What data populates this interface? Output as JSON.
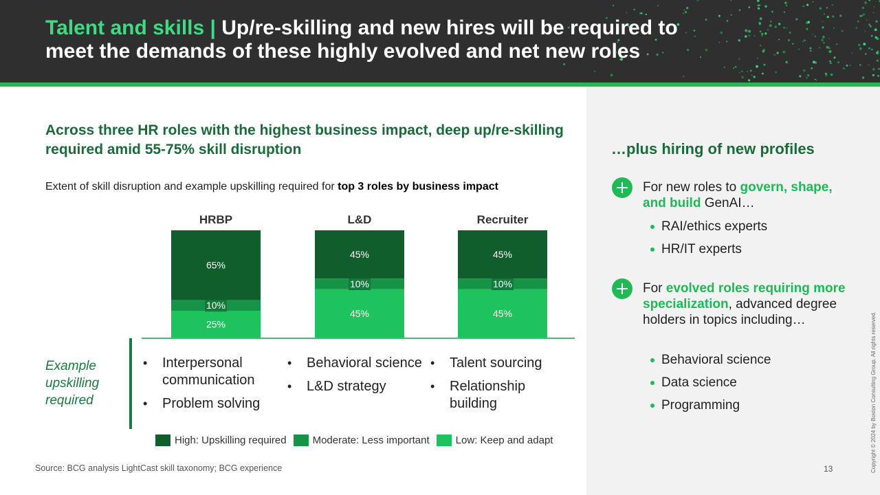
{
  "header": {
    "title_highlight": "Talent and skills |",
    "title_rest": " Up/re-skilling and new hires will be required to meet the demands of these highly evolved and net new roles"
  },
  "left": {
    "section_title": "Across three HR roles with the highest business impact, deep up/re-skilling required amid 55-75% skill disruption",
    "chart_subtitle_plain": "Extent of skill disruption and example upskilling required for ",
    "chart_subtitle_bold": "top 3 roles by business impact",
    "row_label": "Example upskilling required",
    "upskilling": [
      {
        "role": "HRBP",
        "items": [
          "Interpersonal communication",
          "Problem solving"
        ]
      },
      {
        "role": "L&D",
        "items": [
          "Behavioral science",
          "L&D strategy"
        ]
      },
      {
        "role": "Recruiter",
        "items": [
          "Talent sourcing",
          "Relationship building"
        ]
      }
    ]
  },
  "chart_data": {
    "type": "bar",
    "stacked": true,
    "categories": [
      "HRBP",
      "L&D",
      "Recruiter"
    ],
    "series": [
      {
        "name": "Low: Keep and adapt",
        "values": [
          25,
          45,
          45
        ],
        "color": "#1fc35e"
      },
      {
        "name": "Moderate: Less important",
        "values": [
          10,
          10,
          10
        ],
        "color": "#159447"
      },
      {
        "name": "High: Upskilling required",
        "values": [
          65,
          45,
          45
        ],
        "color": "#0f5e2b"
      }
    ],
    "legend_order": [
      "High: Upskilling required",
      "Moderate: Less important",
      "Low: Keep and adapt"
    ],
    "value_suffix": "%",
    "ylim": [
      0,
      100
    ],
    "grid": false,
    "legend_position": "bottom"
  },
  "right": {
    "title": "…plus hiring of new profiles",
    "group1": {
      "text_pre": "For new roles to ",
      "text_highlight": "govern, shape, and build",
      "text_post": " GenAI…",
      "items": [
        "RAI/ethics experts",
        "HR/IT experts"
      ]
    },
    "group2": {
      "text_pre": "For ",
      "text_highlight": "evolved roles requiring more specialization",
      "text_post": ", advanced degree holders in topics including…",
      "items": [
        "Behavioral science",
        "Data science",
        "Programming"
      ]
    }
  },
  "footer": {
    "source": "Source: BCG analysis LightCast skill taxonomy; BCG experience",
    "page_number": "13",
    "copyright": "Copyright © 2024 by Boston Consulting Group. All rights reserved."
  },
  "colors": {
    "header_bg": "#2f2f2f",
    "accent_green": "#1fb955",
    "dark_green": "#1b6b3a"
  }
}
